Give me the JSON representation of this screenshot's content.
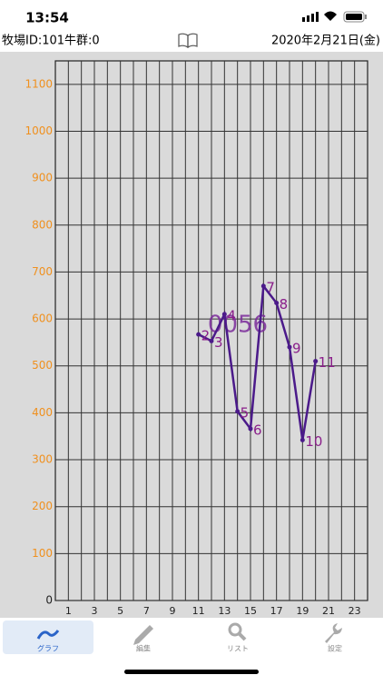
{
  "status_bar": {
    "time": "13:54"
  },
  "header": {
    "left": "牧場ID:101牛群:0",
    "date": "2020年2月21日(金)"
  },
  "chart_data": {
    "type": "line",
    "annotation": "0056",
    "x": [
      11,
      12,
      13,
      14,
      15,
      16,
      17,
      18,
      19,
      20
    ],
    "series": [
      {
        "color": "#4b1a8a",
        "label_color": "#8a1e8a",
        "values": [
          567,
          553,
          610,
          403,
          366,
          670,
          634,
          540,
          342,
          510
        ],
        "point_labels": [
          "2",
          "3",
          "4",
          "5",
          "6",
          "7",
          "8",
          "9",
          "10",
          "11"
        ]
      }
    ],
    "xlim": [
      0,
      24
    ],
    "ylim": [
      0,
      1150
    ],
    "xticks": [
      1,
      3,
      5,
      7,
      9,
      11,
      13,
      15,
      17,
      19,
      21,
      23
    ],
    "x_minor_ticks": [
      2,
      4,
      6,
      8,
      10,
      12,
      14,
      16,
      18,
      20,
      22
    ],
    "yticks": [
      0,
      100,
      200,
      300,
      400,
      500,
      600,
      700,
      800,
      900,
      1000,
      1100
    ],
    "grid": true,
    "ytick_color": "#f0901e"
  },
  "tab_bar": {
    "items": [
      "グラフ",
      "編集",
      "リスト",
      "設定"
    ]
  }
}
